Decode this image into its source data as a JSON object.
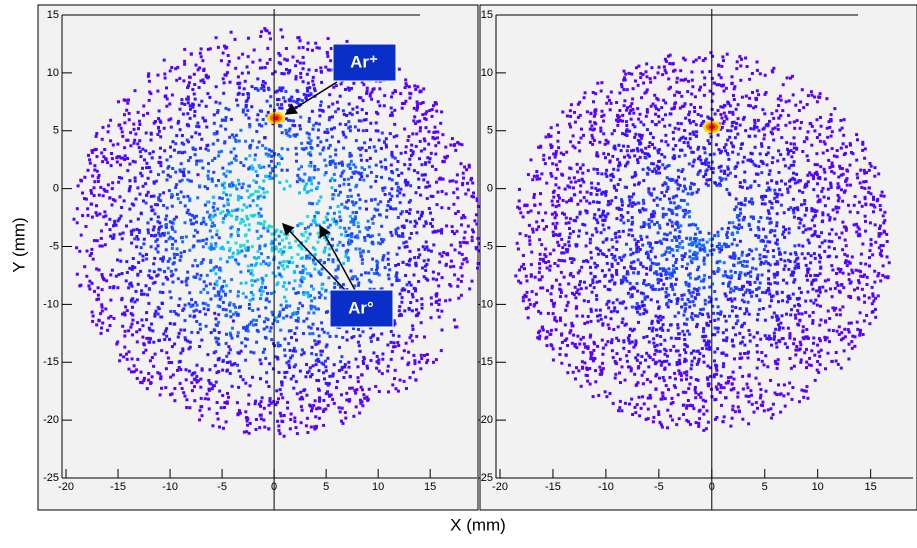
{
  "chart_data": [
    {
      "type": "image",
      "xlabel": "X (mm)",
      "ylabel": "Y (mm)",
      "xlim": [
        -20,
        19.5
      ],
      "ylim": [
        -25,
        15
      ],
      "xticks": [
        -20,
        -15,
        -10,
        -5,
        0,
        5,
        10,
        15
      ],
      "yticks": [
        -25,
        -20,
        -15,
        -10,
        -5,
        0,
        5,
        10,
        15
      ],
      "annotations": [
        "Ar⁺",
        "Ar°"
      ]
    },
    {
      "type": "image",
      "xlim": [
        -20,
        19
      ],
      "ylim": [
        -25,
        15
      ],
      "xticks": [
        -20,
        -15,
        -10,
        -5,
        0,
        5,
        10,
        15
      ],
      "yticks": [
        -25,
        -20,
        -15,
        -10,
        -5,
        0,
        5,
        10,
        15
      ]
    }
  ]
}
